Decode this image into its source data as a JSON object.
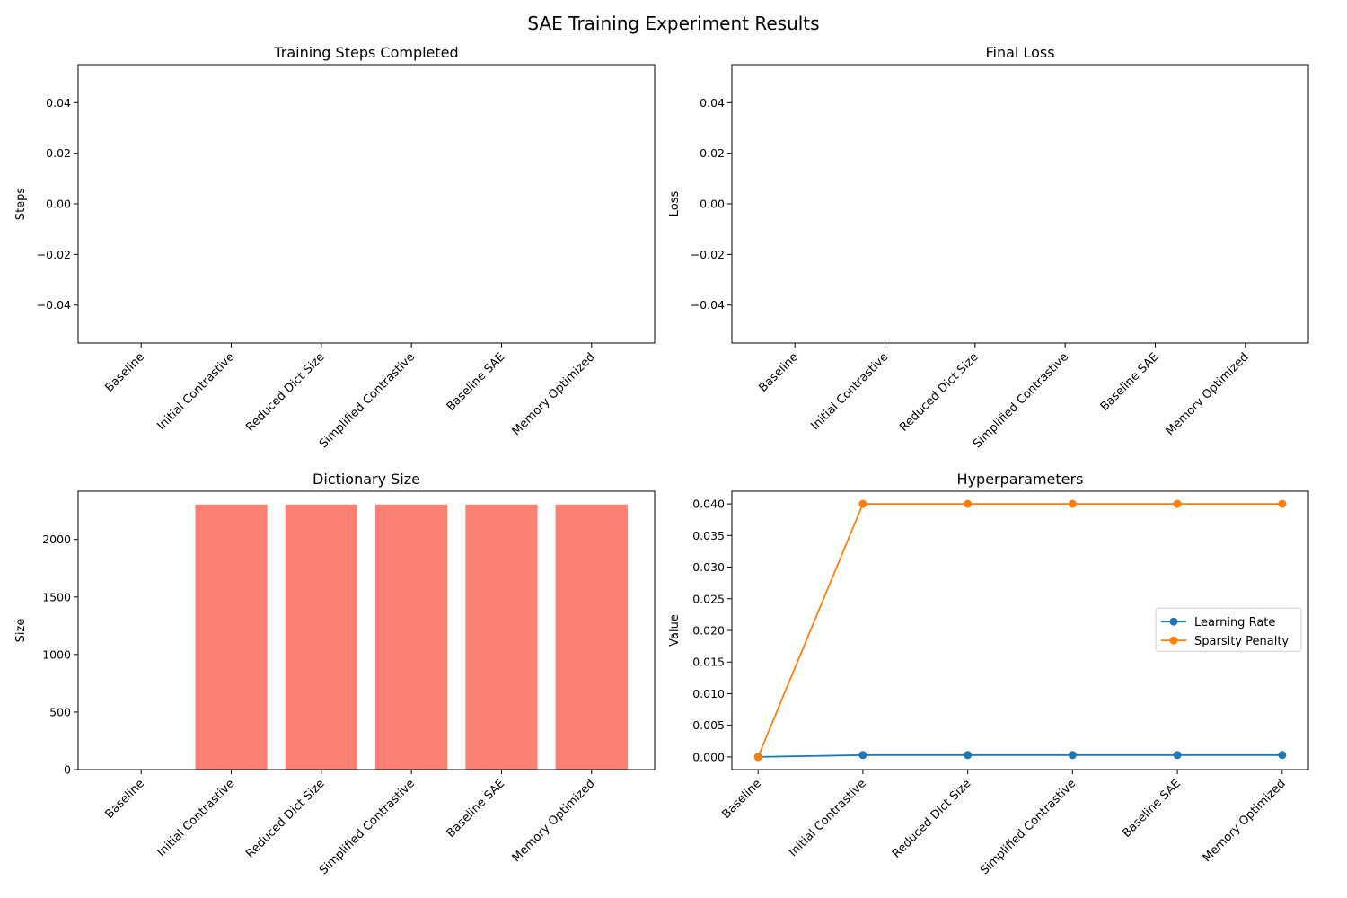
{
  "figure": {
    "title": "SAE Training Experiment Results"
  },
  "colors": {
    "bar": "#fa8072",
    "learning_rate": "#1f77b4",
    "sparsity_penalty": "#ff7f0e",
    "axis": "#000000"
  },
  "chart_data": [
    {
      "type": "bar",
      "title": "Training Steps Completed",
      "xlabel": "",
      "ylabel": "Steps",
      "categories": [
        "Baseline",
        "Initial Contrastive",
        "Reduced Dict Size",
        "Simplified Contrastive",
        "Baseline SAE",
        "Memory Optimized"
      ],
      "values": [
        0,
        0,
        0,
        0,
        0,
        0
      ],
      "ylim": [
        -0.055,
        0.055
      ],
      "yticks": [
        -0.04,
        -0.02,
        0.0,
        0.02,
        0.04
      ],
      "ytick_labels": [
        "−0.04",
        "−0.02",
        "0.00",
        "0.02",
        "0.04"
      ],
      "grid": false
    },
    {
      "type": "bar",
      "title": "Final Loss",
      "xlabel": "",
      "ylabel": "Loss",
      "categories": [
        "Baseline",
        "Initial Contrastive",
        "Reduced Dict Size",
        "Simplified Contrastive",
        "Baseline SAE",
        "Memory Optimized"
      ],
      "values": [
        0,
        0,
        0,
        0,
        0,
        0
      ],
      "ylim": [
        -0.055,
        0.055
      ],
      "yticks": [
        -0.04,
        -0.02,
        0.0,
        0.02,
        0.04
      ],
      "ytick_labels": [
        "−0.04",
        "−0.02",
        "0.00",
        "0.02",
        "0.04"
      ],
      "grid": false
    },
    {
      "type": "bar",
      "title": "Dictionary Size",
      "xlabel": "",
      "ylabel": "Size",
      "categories": [
        "Baseline",
        "Initial Contrastive",
        "Reduced Dict Size",
        "Simplified Contrastive",
        "Baseline SAE",
        "Memory Optimized"
      ],
      "values": [
        0,
        2304,
        2304,
        2304,
        2304,
        2304
      ],
      "ylim": [
        0,
        2419
      ],
      "yticks": [
        0,
        500,
        1000,
        1500,
        2000
      ],
      "ytick_labels": [
        "0",
        "500",
        "1000",
        "1500",
        "2000"
      ],
      "grid": false
    },
    {
      "type": "line",
      "title": "Hyperparameters",
      "xlabel": "",
      "ylabel": "Value",
      "categories": [
        "Baseline",
        "Initial Contrastive",
        "Reduced Dict Size",
        "Simplified Contrastive",
        "Baseline SAE",
        "Memory Optimized"
      ],
      "series": [
        {
          "name": "Learning Rate",
          "values": [
            0,
            0.0003,
            0.0003,
            0.0003,
            0.0003,
            0.0003
          ]
        },
        {
          "name": "Sparsity Penalty",
          "values": [
            0,
            0.04,
            0.04,
            0.04,
            0.04,
            0.04
          ]
        }
      ],
      "ylim": [
        -0.002,
        0.042
      ],
      "yticks": [
        0.0,
        0.005,
        0.01,
        0.015,
        0.02,
        0.025,
        0.03,
        0.035,
        0.04
      ],
      "ytick_labels": [
        "0.000",
        "0.005",
        "0.010",
        "0.015",
        "0.020",
        "0.025",
        "0.030",
        "0.035",
        "0.040"
      ],
      "legend": "center-right",
      "grid": false
    }
  ]
}
